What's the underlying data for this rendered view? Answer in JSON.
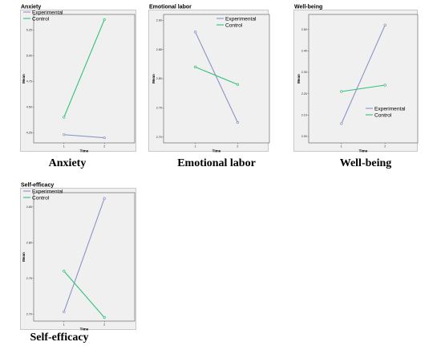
{
  "chart_data": [
    {
      "type": "line",
      "title": "Anxiety",
      "caption": "Anxiety",
      "xlabel": "Time",
      "ylabel": "Mean",
      "categories": [
        "1",
        "2"
      ],
      "yticks": [
        "4.25",
        "4.50",
        "4.75",
        "5.00",
        "5.25"
      ],
      "ylim": [
        4.15,
        5.4
      ],
      "series": [
        {
          "name": "Experimental",
          "values": [
            4.23,
            4.2
          ],
          "color": "#8a93c4"
        },
        {
          "name": "Control",
          "values": [
            4.4,
            5.35
          ],
          "color": "#33c07a"
        }
      ],
      "legend": "top-left",
      "grid": false,
      "background": "#f0f0f0"
    },
    {
      "type": "line",
      "title": "Emotional labor",
      "caption": "Emotional labor",
      "xlabel": "Time",
      "ylabel": "Mean",
      "categories": [
        "1",
        "2"
      ],
      "yticks": [
        "2.70",
        "2.75",
        "2.80",
        "2.85",
        "2.90"
      ],
      "ylim": [
        2.69,
        2.91
      ],
      "series": [
        {
          "name": "Experimental",
          "values": [
            2.88,
            2.725
          ],
          "color": "#8a93c4"
        },
        {
          "name": "Control",
          "values": [
            2.82,
            2.79
          ],
          "color": "#33c07a"
        }
      ],
      "legend": "top-right",
      "grid": false,
      "background": "#f0f0f0"
    },
    {
      "type": "line",
      "title": "Well-being",
      "caption": "Well-being",
      "xlabel": "Time",
      "ylabel": "Mean",
      "categories": [
        "1",
        "2"
      ],
      "yticks": [
        "2.00",
        "2.10",
        "2.20",
        "2.30",
        "2.40",
        "2.50"
      ],
      "ylim": [
        1.97,
        2.57
      ],
      "series": [
        {
          "name": "Experimental",
          "values": [
            2.06,
            2.52
          ],
          "color": "#8a93c4"
        },
        {
          "name": "Control",
          "values": [
            2.21,
            2.24
          ],
          "color": "#33c07a"
        }
      ],
      "legend": "bottom-right",
      "grid": false,
      "background": "#f0f0f0"
    },
    {
      "type": "line",
      "title": "Self-efficacy",
      "caption": "Self-efficacy",
      "xlabel": "Time",
      "ylabel": "Mean",
      "categories": [
        "1",
        "2"
      ],
      "yticks": [
        "2.70",
        "2.75",
        "2.80",
        "2.85"
      ],
      "ylim": [
        2.69,
        2.87
      ],
      "series": [
        {
          "name": "Experimental",
          "values": [
            2.703,
            2.862
          ],
          "color": "#8a93c4"
        },
        {
          "name": "Control",
          "values": [
            2.76,
            2.695
          ],
          "color": "#33c07a"
        }
      ],
      "legend": "top-left",
      "grid": false,
      "background": "#f0f0f0"
    }
  ]
}
